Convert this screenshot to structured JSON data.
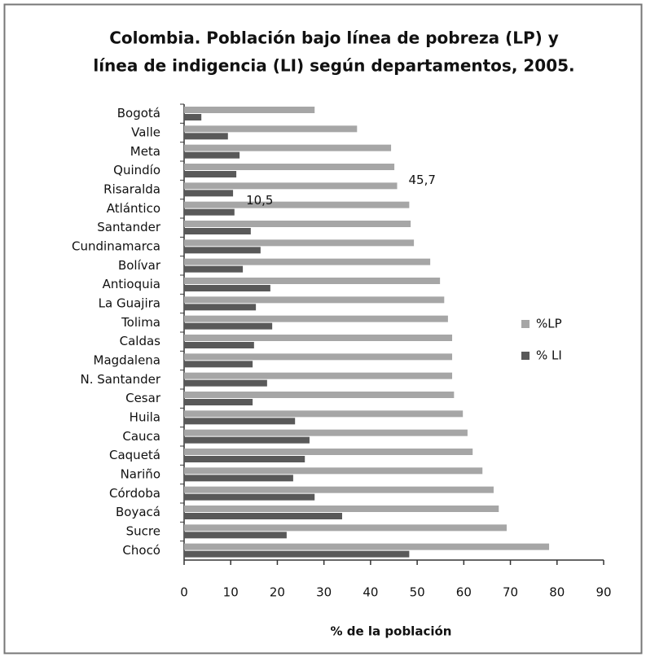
{
  "chart_data": {
    "type": "barh",
    "title_lines": [
      "Colombia. Población bajo línea de pobreza (LP) y",
      "línea de indigencia (LI) según departamentos, 2005."
    ],
    "xlabel": "% de la población",
    "categories": [
      "Bogotá",
      "Valle",
      "Meta",
      "Quindío",
      "Risaralda",
      "Atlántico",
      "Santander",
      "Cundinamarca",
      "Bolívar",
      "Antioquia",
      "La Guajira",
      "Tolima",
      "Caldas",
      "Magdalena",
      "N. Santander",
      "Cesar",
      "Huila",
      "Cauca",
      "Caquetá",
      "Nariño",
      "Córdoba",
      "Boyacá",
      "Sucre",
      "Chocó"
    ],
    "series": [
      {
        "name": "%LP",
        "color": "#a6a6a6",
        "values": [
          28.0,
          37.1,
          44.4,
          45.1,
          45.7,
          48.3,
          48.6,
          49.3,
          52.8,
          54.9,
          55.8,
          56.6,
          57.5,
          57.5,
          57.5,
          57.9,
          59.8,
          60.8,
          61.9,
          64.0,
          66.4,
          67.5,
          69.2,
          78.3
        ],
        "value_labels": [
          null,
          null,
          null,
          null,
          "45,7",
          null,
          null,
          null,
          null,
          null,
          null,
          null,
          null,
          null,
          null,
          null,
          null,
          null,
          null,
          null,
          null,
          null,
          null,
          null
        ]
      },
      {
        "name": "% LI",
        "color": "#595959",
        "values": [
          3.7,
          9.4,
          11.9,
          11.2,
          10.5,
          10.8,
          14.3,
          16.4,
          12.6,
          18.5,
          15.4,
          18.9,
          15.0,
          14.7,
          17.8,
          14.7,
          23.8,
          26.9,
          25.9,
          23.4,
          28.0,
          33.9,
          22.0,
          48.3
        ],
        "value_labels": [
          null,
          null,
          null,
          null,
          "10,5",
          null,
          null,
          null,
          null,
          null,
          null,
          null,
          null,
          null,
          null,
          null,
          null,
          null,
          null,
          null,
          null,
          null,
          null,
          null
        ]
      }
    ],
    "xlim": [
      0,
      90
    ],
    "xticks": [
      0,
      10,
      20,
      30,
      40,
      50,
      60,
      70,
      80,
      90
    ],
    "legend": "right"
  }
}
